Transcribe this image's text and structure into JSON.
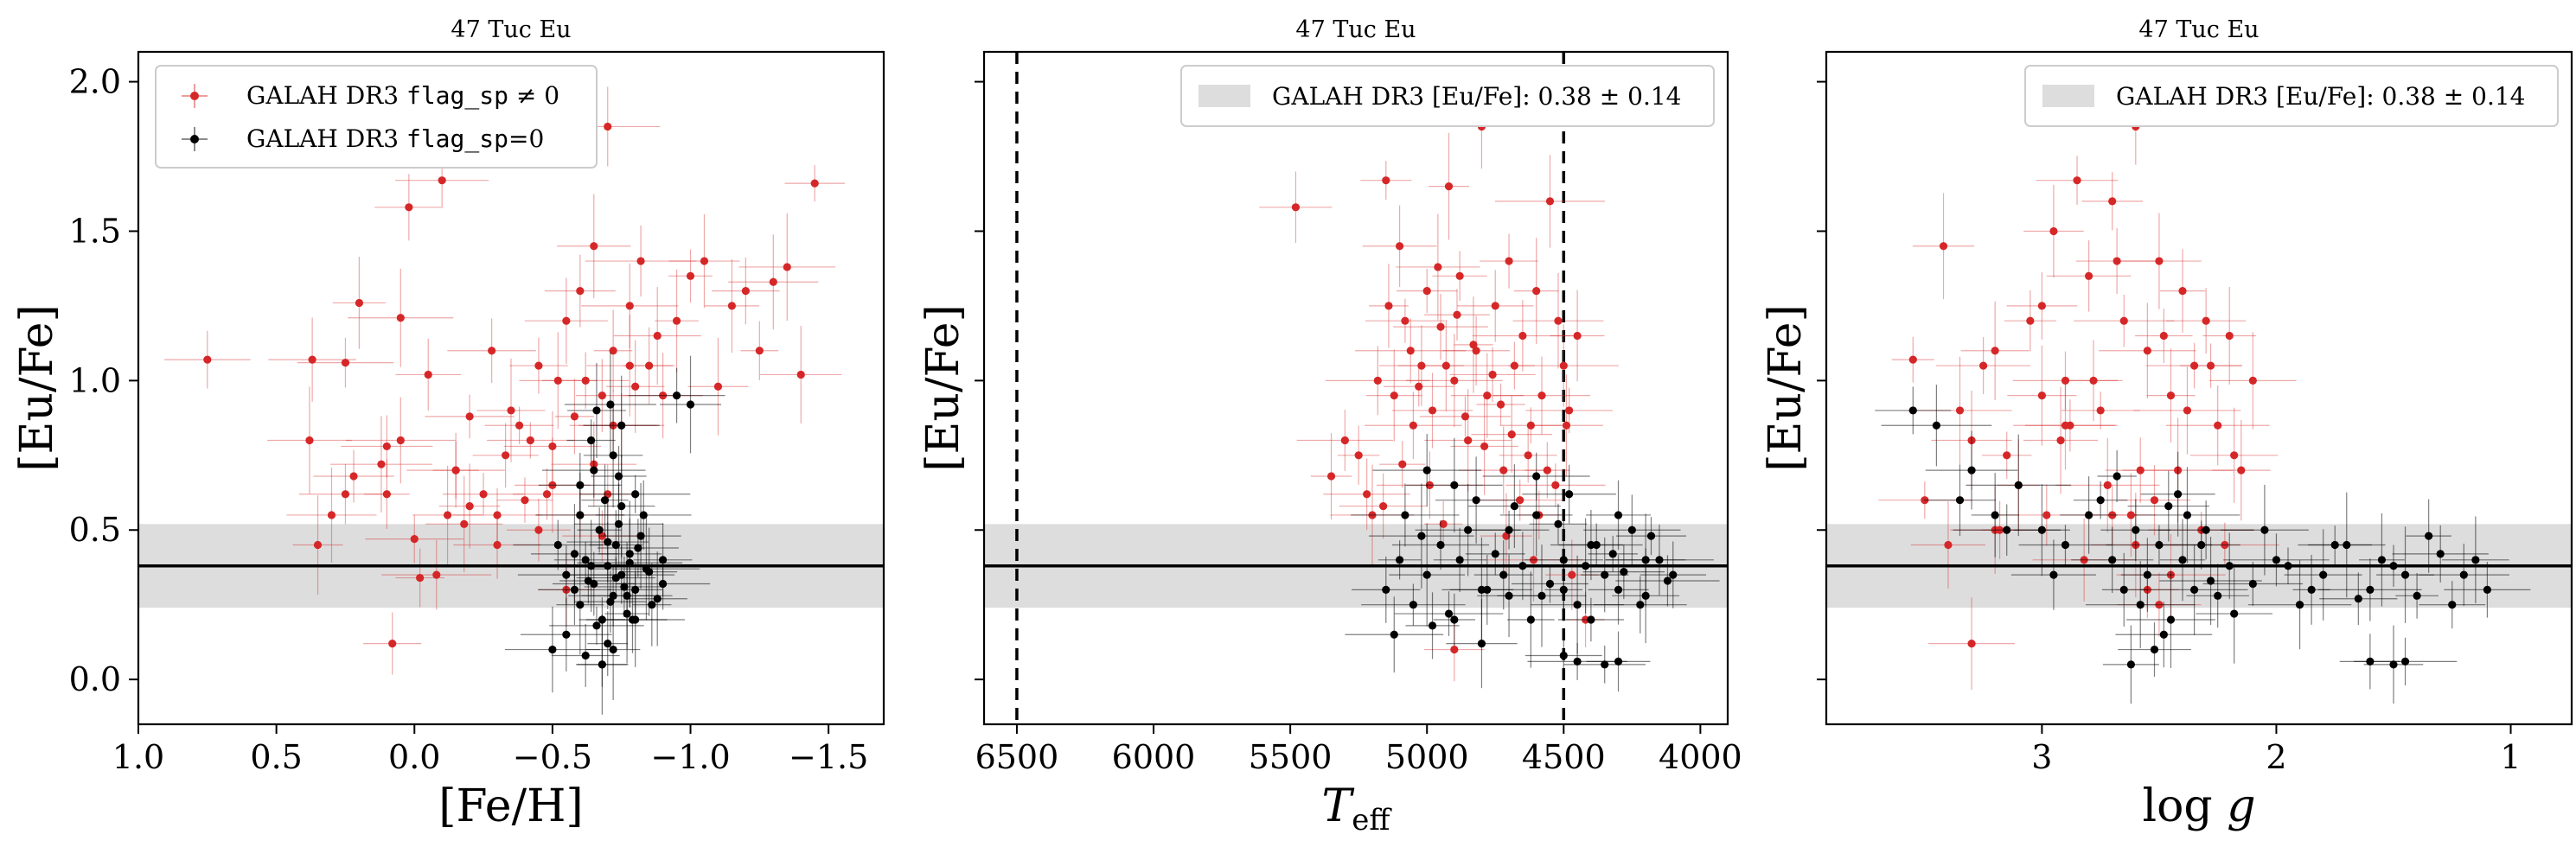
{
  "colors": {
    "flag_nonzero": "#d62728",
    "flag_zero": "#000000",
    "band": "#dddddd",
    "mean_line": "#000000",
    "teff_cut_lines": "#000000"
  },
  "chart_data": [
    {
      "type": "scatter",
      "title": "47 Tuc Eu",
      "xlabel": "[Fe/H]",
      "ylabel": "[Eu/Fe]",
      "xlim": [
        1.0,
        -1.7
      ],
      "ylim": [
        -0.15,
        2.1
      ],
      "xticks": [
        1.0,
        0.5,
        0.0,
        -0.5,
        -1.0,
        -1.5
      ],
      "xtick_labels": [
        "1.0",
        "0.5",
        "0.0",
        "−0.5",
        "−1.0",
        "−1.5"
      ],
      "yticks": [
        0.0,
        0.5,
        1.0,
        1.5,
        2.0
      ],
      "ytick_labels": [
        "0.0",
        "0.5",
        "1.0",
        "1.5",
        "2.0"
      ],
      "legend": {
        "placement": "top-left",
        "entries": [
          {
            "series": "flag_nonzero",
            "pre": "GALAH DR3 ",
            "code": "flag_sp",
            "post": " ≠ 0"
          },
          {
            "series": "flag_zero",
            "pre": "GALAH DR3 ",
            "code": "flag_sp",
            "post": "=0"
          }
        ]
      },
      "band": {
        "mean": 0.38,
        "std": 0.14
      },
      "series": [
        {
          "id": "flag_nonzero",
          "color": "#d62728",
          "x": [
            0.75,
            0.38,
            0.37,
            0.35,
            0.3,
            0.25,
            0.25,
            0.22,
            0.2,
            0.12,
            0.1,
            0.1,
            0.08,
            0.05,
            0.02,
            0.0,
            -0.02,
            -0.05,
            -0.08,
            -0.1,
            -0.12,
            -0.15,
            -0.18,
            -0.2,
            -0.25,
            -0.28,
            -0.3,
            -0.33,
            -0.35,
            -0.38,
            -0.4,
            -0.42,
            -0.45,
            -0.48,
            -0.5,
            -0.52,
            -0.55,
            -0.58,
            -0.6,
            -0.62,
            -0.65,
            -0.68,
            -0.7,
            -0.72,
            -0.75,
            -0.78,
            -0.8,
            -0.82,
            -0.85,
            -0.88,
            -0.9,
            -0.95,
            -1.0,
            -1.05,
            -1.1,
            -1.15,
            -1.2,
            -1.25,
            -1.3,
            -1.35,
            -1.4,
            -1.45,
            -0.55,
            -0.65,
            -0.72,
            -0.78,
            -0.6,
            -0.68,
            -0.3,
            -0.2,
            -0.45,
            -0.7,
            -0.15,
            0.05,
            -0.5
          ],
          "y": [
            1.07,
            0.8,
            1.07,
            0.45,
            0.55,
            0.62,
            1.06,
            0.68,
            1.26,
            0.72,
            0.62,
            0.78,
            0.12,
            1.21,
            1.58,
            0.47,
            0.34,
            1.02,
            0.35,
            1.67,
            0.55,
            0.7,
            0.52,
            0.88,
            0.62,
            1.1,
            0.55,
            0.75,
            0.9,
            0.85,
            0.6,
            0.8,
            1.05,
            0.62,
            0.78,
            1.0,
            1.2,
            0.88,
            1.3,
            1.0,
            1.45,
            0.95,
            1.85,
            1.1,
            0.85,
            1.25,
            0.98,
            1.4,
            1.05,
            1.15,
            0.95,
            1.2,
            1.35,
            1.4,
            0.98,
            1.25,
            1.3,
            1.1,
            1.33,
            1.38,
            1.02,
            1.66,
            0.3,
            0.72,
            0.85,
            1.05,
            0.55,
            0.48,
            0.45,
            0.58,
            0.5,
            0.62,
            0.7,
            0.8,
            0.65
          ]
        },
        {
          "id": "flag_zero",
          "color": "#000000",
          "x": [
            -0.55,
            -0.58,
            -0.6,
            -0.62,
            -0.65,
            -0.67,
            -0.68,
            -0.7,
            -0.72,
            -0.73,
            -0.75,
            -0.77,
            -0.78,
            -0.8,
            -0.82,
            -0.85,
            -0.88,
            -0.9,
            -0.55,
            -0.6,
            -0.63,
            -0.66,
            -0.69,
            -0.71,
            -0.74,
            -0.76,
            -0.79,
            -0.81,
            -0.84,
            -0.6,
            -0.65,
            -0.7,
            -0.75,
            -0.8,
            -0.62,
            -0.68,
            -0.72,
            -0.77,
            -0.83,
            -0.58,
            -0.64,
            -0.7,
            -0.73,
            -0.78,
            -0.86,
            -0.66,
            -0.71,
            -0.75,
            -0.68,
            -0.72,
            -0.95,
            -1.0,
            -0.5,
            -0.52,
            -0.8,
            -0.9,
            -0.64,
            -0.74
          ],
          "y": [
            0.35,
            0.3,
            0.25,
            0.4,
            0.32,
            0.5,
            0.2,
            0.38,
            0.28,
            0.45,
            0.35,
            0.22,
            0.42,
            0.3,
            0.48,
            0.36,
            0.27,
            0.4,
            0.15,
            0.55,
            0.33,
            0.18,
            0.6,
            0.26,
            0.52,
            0.31,
            0.2,
            0.44,
            0.37,
            0.65,
            0.7,
            0.12,
            0.58,
            0.62,
            0.08,
            0.05,
            0.75,
            0.28,
            0.55,
            0.42,
            0.38,
            0.46,
            0.34,
            0.39,
            0.25,
            0.9,
            0.92,
            0.85,
            0.05,
            0.1,
            0.95,
            0.92,
            0.1,
            0.45,
            0.2,
            0.32,
            0.8,
            0.68
          ]
        }
      ]
    },
    {
      "type": "scatter",
      "title": "47 Tuc Eu",
      "xlabel": "T_eff",
      "ylabel": "[Eu/Fe]",
      "xlim": [
        6620,
        3900
      ],
      "ylim": [
        -0.15,
        2.1
      ],
      "xticks": [
        6500,
        6000,
        5500,
        5000,
        4500,
        4000
      ],
      "xtick_labels": [
        "6500",
        "6000",
        "5500",
        "5000",
        "4500",
        "4000"
      ],
      "yticks": [
        0.0,
        0.5,
        1.0,
        1.5,
        2.0
      ],
      "vlines": [
        6500,
        4500
      ],
      "legend": {
        "placement": "top-right",
        "entries": [
          {
            "series": "band",
            "text": "GALAH DR3 [Eu/Fe]: 0.38 ± 0.14"
          }
        ]
      },
      "band": {
        "mean": 0.38,
        "std": 0.14
      },
      "series": [
        {
          "id": "flag_nonzero",
          "color": "#d62728",
          "x": [
            5480,
            5250,
            5200,
            5150,
            5120,
            5100,
            5080,
            5050,
            5020,
            5000,
            4980,
            4950,
            4920,
            4900,
            4880,
            4850,
            4820,
            4800,
            4780,
            4750,
            4720,
            4700,
            4680,
            4650,
            4620,
            4600,
            4580,
            4550,
            4520,
            4500,
            4480,
            5300,
            5220,
            5180,
            5140,
            5090,
            5060,
            5030,
            4990,
            4960,
            4930,
            4890,
            4860,
            4830,
            4790,
            4760,
            4730,
            4690,
            4660,
            4630,
            4590,
            4560,
            4530,
            4490,
            5350,
            5160,
            4940,
            4710,
            4610,
            4470,
            4450,
            4420,
            4900
          ],
          "y": [
            1.58,
            0.75,
            0.55,
            1.67,
            0.95,
            1.45,
            1.2,
            0.85,
            1.05,
            1.3,
            0.9,
            1.18,
            1.65,
            1.0,
            1.35,
            0.8,
            1.1,
            1.85,
            0.95,
            1.25,
            0.7,
            1.4,
            1.05,
            1.15,
            0.85,
            1.3,
            0.95,
            1.6,
            1.2,
            1.05,
            0.9,
            0.8,
            0.62,
            1.0,
            1.25,
            0.72,
            1.1,
            0.98,
            0.65,
            1.38,
            1.05,
            1.22,
            0.88,
            1.12,
            0.78,
            1.02,
            0.92,
            0.82,
            0.6,
            0.75,
            0.55,
            0.7,
            0.65,
            0.85,
            0.68,
            0.58,
            0.52,
            0.48,
            0.4,
            0.35,
            1.15,
            0.2,
            0.1
          ]
        },
        {
          "id": "flag_zero",
          "color": "#000000",
          "x": [
            5150,
            5100,
            5050,
            5000,
            4950,
            4900,
            4850,
            4800,
            4750,
            4700,
            4650,
            4600,
            4550,
            4500,
            4450,
            4400,
            4350,
            4300,
            4250,
            4200,
            4150,
            4100,
            5120,
            5020,
            4920,
            4820,
            4720,
            4620,
            4520,
            4420,
            4320,
            4220,
            4120,
            5080,
            4980,
            4880,
            4780,
            4680,
            4580,
            4480,
            4380,
            4280,
            4180,
            5000,
            4900,
            4800,
            4700,
            4600,
            4500,
            4400,
            4300,
            4200,
            4500,
            4450,
            4350,
            4300
          ],
          "y": [
            0.3,
            0.4,
            0.25,
            0.35,
            0.45,
            0.2,
            0.5,
            0.3,
            0.42,
            0.28,
            0.38,
            0.55,
            0.32,
            0.4,
            0.25,
            0.45,
            0.35,
            0.3,
            0.5,
            0.28,
            0.4,
            0.35,
            0.15,
            0.48,
            0.22,
            0.6,
            0.35,
            0.2,
            0.52,
            0.38,
            0.42,
            0.25,
            0.33,
            0.55,
            0.18,
            0.4,
            0.3,
            0.58,
            0.28,
            0.62,
            0.45,
            0.36,
            0.48,
            0.7,
            0.65,
            0.12,
            0.5,
            0.68,
            0.3,
            0.2,
            0.55,
            0.4,
            0.08,
            0.06,
            0.05,
            0.06
          ]
        }
      ]
    },
    {
      "type": "scatter",
      "title": "47 Tuc Eu",
      "xlabel": "log g",
      "ylabel": "[Eu/Fe]",
      "xlim": [
        3.92,
        0.74
      ],
      "ylim": [
        -0.15,
        2.1
      ],
      "xticks": [
        3,
        2,
        1
      ],
      "xtick_labels": [
        "3",
        "2",
        "1"
      ],
      "yticks": [
        0.0,
        0.5,
        1.0,
        1.5,
        2.0
      ],
      "legend": {
        "placement": "top-right",
        "entries": [
          {
            "series": "band",
            "text": "GALAH DR3 [Eu/Fe]: 0.38 ± 0.14"
          }
        ]
      },
      "band": {
        "mean": 0.38,
        "std": 0.14
      },
      "series": [
        {
          "id": "flag_nonzero",
          "color": "#d62728",
          "x": [
            3.55,
            3.42,
            3.3,
            3.2,
            3.1,
            3.0,
            2.95,
            2.9,
            2.85,
            2.8,
            2.75,
            2.7,
            2.65,
            2.6,
            2.55,
            2.5,
            2.45,
            2.4,
            2.35,
            2.3,
            2.25,
            2.2,
            2.15,
            2.1,
            3.5,
            3.35,
            3.25,
            3.15,
            3.05,
            2.98,
            2.88,
            2.78,
            2.68,
            2.58,
            2.48,
            2.38,
            2.28,
            2.18,
            3.4,
            3.18,
            2.92,
            2.72,
            2.62,
            2.52,
            2.42,
            2.32,
            2.22,
            3.3,
            2.82,
            2.55,
            2.45,
            3.2,
            2.7,
            2.6,
            2.5,
            3.0,
            2.9
          ],
          "y": [
            1.07,
            1.45,
            0.8,
            1.1,
            0.65,
            1.25,
            1.5,
            1.0,
            1.67,
            1.35,
            0.9,
            1.6,
            1.2,
            1.85,
            1.1,
            1.4,
            0.95,
            1.3,
            1.05,
            1.2,
            0.85,
            1.15,
            0.7,
            1.0,
            0.6,
            0.9,
            1.05,
            0.75,
            1.2,
            0.55,
            0.85,
            1.0,
            1.4,
            0.7,
            1.15,
            0.9,
            1.05,
            0.75,
            0.45,
            0.5,
            0.8,
            0.65,
            0.55,
            0.6,
            0.7,
            0.5,
            0.45,
            0.12,
            0.4,
            0.3,
            0.35,
            0.5,
            0.55,
            0.45,
            0.25,
            0.95,
            0.85
          ]
        },
        {
          "id": "flag_zero",
          "color": "#000000",
          "x": [
            3.55,
            3.45,
            3.35,
            3.2,
            3.1,
            3.0,
            2.9,
            2.8,
            2.7,
            2.65,
            2.6,
            2.55,
            2.5,
            2.45,
            2.4,
            2.35,
            2.3,
            2.25,
            2.2,
            2.1,
            2.0,
            1.9,
            1.8,
            1.7,
            1.6,
            1.5,
            1.4,
            1.3,
            1.2,
            1.1,
            3.3,
            3.15,
            2.95,
            2.75,
            2.58,
            2.48,
            2.38,
            2.28,
            2.18,
            2.05,
            1.95,
            1.85,
            1.75,
            1.65,
            1.55,
            1.45,
            1.35,
            1.25,
            1.15,
            2.68,
            2.52,
            2.42,
            2.32,
            2.62,
            2.46,
            1.6,
            1.5,
            1.45
          ],
          "y": [
            0.9,
            0.85,
            0.6,
            0.55,
            0.65,
            0.5,
            0.45,
            0.55,
            0.4,
            0.3,
            0.5,
            0.35,
            0.45,
            0.2,
            0.4,
            0.3,
            0.5,
            0.28,
            0.38,
            0.32,
            0.4,
            0.25,
            0.35,
            0.45,
            0.3,
            0.38,
            0.28,
            0.42,
            0.35,
            0.3,
            0.7,
            0.5,
            0.35,
            0.6,
            0.25,
            0.15,
            0.55,
            0.33,
            0.22,
            0.5,
            0.38,
            0.3,
            0.45,
            0.27,
            0.4,
            0.35,
            0.48,
            0.25,
            0.4,
            0.68,
            0.1,
            0.62,
            0.45,
            0.05,
            0.58,
            0.06,
            0.05,
            0.06
          ]
        }
      ]
    }
  ]
}
